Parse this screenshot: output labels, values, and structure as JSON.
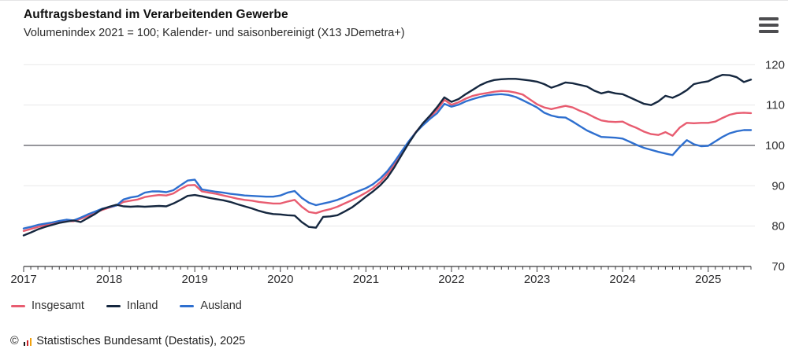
{
  "header": {
    "title": "Auftragsbestand im Verarbeitenden Gewerbe",
    "subtitle": "Volumenindex 2021 = 100; Kalender- und saisonbereinigt (X13 JDemetra+)",
    "menu_icon": "hamburger-menu-icon"
  },
  "chart_data": {
    "type": "line",
    "title": "Auftragsbestand im Verarbeitenden Gewerbe",
    "subtitle": "Volumenindex 2021 = 100; Kalender- und saisonbereinigt (X13 JDemetra+)",
    "x_unit": "month",
    "x_start": "2017-01",
    "x_end": "2025-07",
    "x_tick_labels": [
      "2017",
      "2018",
      "2019",
      "2020",
      "2021",
      "2022",
      "2023",
      "2024",
      "2025"
    ],
    "ylim": [
      70,
      120
    ],
    "y_ticks": [
      70,
      80,
      90,
      100,
      110,
      120
    ],
    "reference_line": 100,
    "grid": true,
    "legend_position": "bottom-left",
    "colors": {
      "grid": "#e8e8ea",
      "reference_line": "#73737a",
      "axis": "#3c3c3f",
      "tick_text": "#2f2f31"
    },
    "series": [
      {
        "name": "Insgesamt",
        "color": "#e85c70",
        "values": [
          78.8,
          79.3,
          79.8,
          80.2,
          80.5,
          81.0,
          81.3,
          81.2,
          81.8,
          82.5,
          83.3,
          84.0,
          84.6,
          85.1,
          86.0,
          86.3,
          86.6,
          87.2,
          87.5,
          87.7,
          87.6,
          88.1,
          89.2,
          90.1,
          90.2,
          88.6,
          88.3,
          88.0,
          87.6,
          87.2,
          86.8,
          86.5,
          86.3,
          86.0,
          85.8,
          85.6,
          85.6,
          86.1,
          86.5,
          84.8,
          83.5,
          83.2,
          83.8,
          84.2,
          84.8,
          85.6,
          86.4,
          87.3,
          88.3,
          89.4,
          90.9,
          92.9,
          95.4,
          98.2,
          100.9,
          103.3,
          105.3,
          107.0,
          108.8,
          111.3,
          110.1,
          110.7,
          111.6,
          112.3,
          112.7,
          113.0,
          113.3,
          113.5,
          113.4,
          113.1,
          112.6,
          111.4,
          110.2,
          109.4,
          109.0,
          109.4,
          109.8,
          109.4,
          108.6,
          107.9,
          107.0,
          106.2,
          105.9,
          105.8,
          105.9,
          105.0,
          104.3,
          103.4,
          102.8,
          102.6,
          103.3,
          102.4,
          104.4,
          105.6,
          105.5,
          105.6,
          105.6,
          105.9,
          106.8,
          107.6,
          108.0,
          108.1,
          108.0
        ]
      },
      {
        "name": "Inland",
        "color": "#15273f",
        "values": [
          77.7,
          78.4,
          79.2,
          79.8,
          80.3,
          80.8,
          81.1,
          81.4,
          81.0,
          82.0,
          83.0,
          84.2,
          84.8,
          85.3,
          84.9,
          84.8,
          84.9,
          84.8,
          84.9,
          85.0,
          84.9,
          85.6,
          86.5,
          87.5,
          87.7,
          87.4,
          87.0,
          86.7,
          86.4,
          86.0,
          85.4,
          84.9,
          84.4,
          83.8,
          83.3,
          83.0,
          82.9,
          82.7,
          82.6,
          81.0,
          79.8,
          79.6,
          82.3,
          82.4,
          82.7,
          83.6,
          84.6,
          85.9,
          87.3,
          88.6,
          90.1,
          92.0,
          94.6,
          97.6,
          100.5,
          103.2,
          105.5,
          107.4,
          109.5,
          111.9,
          110.8,
          111.5,
          112.7,
          113.8,
          114.9,
          115.7,
          116.2,
          116.4,
          116.5,
          116.5,
          116.3,
          116.1,
          115.8,
          115.2,
          114.3,
          114.9,
          115.6,
          115.4,
          115.0,
          114.6,
          113.6,
          112.9,
          113.3,
          112.9,
          112.7,
          111.9,
          111.1,
          110.3,
          110.0,
          110.9,
          112.3,
          111.8,
          112.6,
          113.7,
          115.2,
          115.6,
          115.9,
          116.8,
          117.5,
          117.4,
          116.9,
          115.7,
          116.3
        ]
      },
      {
        "name": "Ausland",
        "color": "#2e6fcf",
        "values": [
          79.4,
          79.8,
          80.3,
          80.6,
          80.9,
          81.3,
          81.6,
          81.4,
          82.1,
          82.9,
          83.6,
          84.3,
          84.7,
          85.1,
          86.6,
          87.1,
          87.4,
          88.3,
          88.6,
          88.6,
          88.4,
          88.9,
          90.1,
          91.3,
          91.5,
          89.1,
          88.8,
          88.5,
          88.3,
          88.0,
          87.8,
          87.6,
          87.5,
          87.4,
          87.3,
          87.3,
          87.6,
          88.3,
          88.7,
          87.0,
          85.8,
          85.2,
          85.6,
          86.0,
          86.5,
          87.2,
          88.0,
          88.7,
          89.4,
          90.4,
          91.8,
          93.6,
          95.9,
          98.5,
          101.0,
          103.2,
          105.0,
          106.6,
          108.0,
          110.3,
          109.6,
          110.1,
          110.9,
          111.5,
          112.0,
          112.4,
          112.6,
          112.7,
          112.5,
          112.0,
          111.2,
          110.3,
          109.4,
          108.1,
          107.4,
          107.0,
          106.9,
          105.9,
          104.8,
          103.7,
          102.9,
          102.1,
          102.0,
          101.9,
          101.7,
          100.9,
          100.1,
          99.4,
          98.9,
          98.4,
          98.0,
          97.6,
          99.6,
          101.3,
          100.3,
          99.8,
          99.9,
          101.0,
          102.1,
          103.0,
          103.5,
          103.8,
          103.8
        ]
      }
    ]
  },
  "footer": {
    "copyright": "©",
    "logo_icon": "destatis-bar-chart-icon",
    "source": "Statistisches Bundesamt (Destatis), 2025"
  }
}
